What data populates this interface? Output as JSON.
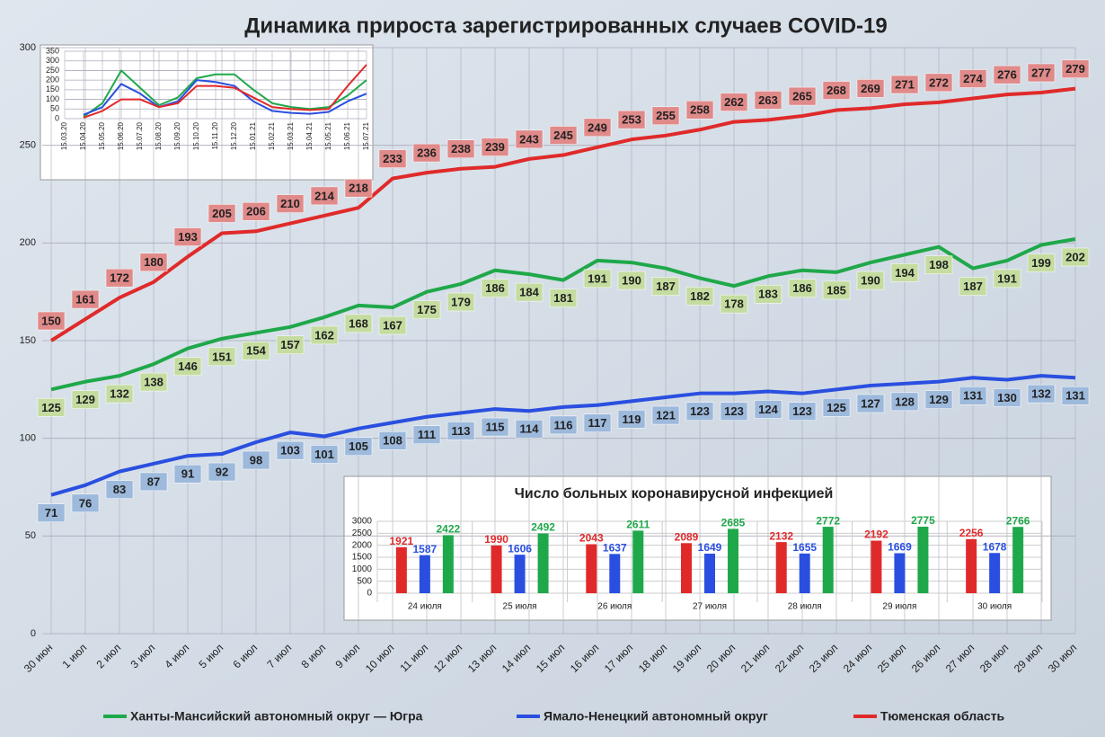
{
  "chart_data": [
    {
      "type": "line",
      "title": "Динамика прироста зарегистрированных случаев COVID-19",
      "categories": [
        "30 июн",
        "1 июл",
        "2 июл",
        "3 июл",
        "4 июл",
        "5 июл",
        "6 июл",
        "7 июл",
        "8 июл",
        "9 июл",
        "10 июл",
        "11 июл",
        "12 июл",
        "13 июл",
        "14 июл",
        "15 июл",
        "16 июл",
        "17 июл",
        "18 июл",
        "19 июл",
        "20 июл",
        "21 июл",
        "22 июл",
        "23 июл",
        "24 июл",
        "25 июл",
        "26 июл",
        "27 июл",
        "28 июл",
        "29 июл",
        "30 июл"
      ],
      "series": [
        {
          "name": "Ханты-Мансийский автономный округ — Югра",
          "color": "#1fa84a",
          "values": [
            125,
            129,
            132,
            138,
            146,
            151,
            154,
            157,
            162,
            168,
            167,
            175,
            179,
            186,
            184,
            181,
            191,
            190,
            187,
            182,
            178,
            183,
            186,
            185,
            190,
            194,
            198,
            187,
            191,
            199,
            202
          ]
        },
        {
          "name": "Ямало-Ненецкий автономный округ",
          "color": "#2a4fe0",
          "values": [
            71,
            76,
            83,
            87,
            91,
            92,
            98,
            103,
            101,
            105,
            108,
            111,
            113,
            115,
            114,
            116,
            117,
            119,
            121,
            123,
            123,
            124,
            123,
            125,
            127,
            128,
            129,
            131,
            130,
            132,
            131
          ]
        },
        {
          "name": "Тюменская область",
          "color": "#e02a2a",
          "values": [
            150,
            161,
            172,
            180,
            193,
            205,
            206,
            210,
            214,
            218,
            233,
            236,
            238,
            239,
            243,
            245,
            249,
            253,
            255,
            258,
            262,
            263,
            265,
            268,
            269,
            271,
            272,
            274,
            276,
            277,
            279
          ]
        }
      ],
      "ylim": [
        0,
        300
      ],
      "yticks": [
        0,
        50,
        100,
        150,
        200,
        250,
        300
      ],
      "grid": true,
      "data_labels": true,
      "legend": "bottom"
    },
    {
      "type": "line",
      "categories": [
        "15.03.20",
        "15.04.20",
        "15.05.20",
        "15.06.20",
        "15.07.20",
        "15.08.20",
        "15.09.20",
        "15.10.20",
        "15.11.20",
        "15.12.20",
        "15.01.21",
        "15.02.21",
        "15.03.21",
        "15.04.21",
        "15.05.21",
        "15.06.21",
        "15.07.21"
      ],
      "series": [
        {
          "color": "#1fa84a",
          "values": [
            null,
            10,
            80,
            250,
            160,
            70,
            110,
            210,
            230,
            230,
            150,
            80,
            60,
            50,
            60,
            120,
            200
          ]
        },
        {
          "color": "#2a4fe0",
          "values": [
            null,
            20,
            60,
            180,
            130,
            60,
            90,
            200,
            190,
            170,
            90,
            40,
            30,
            25,
            35,
            90,
            130
          ]
        },
        {
          "color": "#e02a2a",
          "values": [
            null,
            5,
            40,
            100,
            100,
            60,
            80,
            170,
            170,
            160,
            110,
            60,
            50,
            45,
            50,
            170,
            280
          ]
        }
      ],
      "ylim": [
        0,
        350
      ],
      "yticks": [
        0,
        50,
        100,
        150,
        200,
        250,
        300,
        350
      ],
      "grid": true,
      "data_labels": false
    },
    {
      "type": "bar",
      "title": "Число больных коронавирусной  инфекцией",
      "categories": [
        "24 июля",
        "25 июля",
        "26 июля",
        "27 июля",
        "28 июля",
        "29 июля",
        "30 июля"
      ],
      "series": [
        {
          "color": "#e02a2a",
          "values": [
            1921,
            1990,
            2043,
            2089,
            2132,
            2192,
            2256
          ]
        },
        {
          "color": "#2a4fe0",
          "values": [
            1587,
            1606,
            1637,
            1649,
            1655,
            1669,
            1678
          ]
        },
        {
          "color": "#1fa84a",
          "values": [
            2422,
            2492,
            2611,
            2685,
            2772,
            2775,
            2766
          ]
        }
      ],
      "ylim": [
        0,
        3000
      ],
      "yticks": [
        0,
        500,
        1000,
        1500,
        2000,
        2500,
        3000
      ],
      "grid": true,
      "data_labels": true
    }
  ]
}
